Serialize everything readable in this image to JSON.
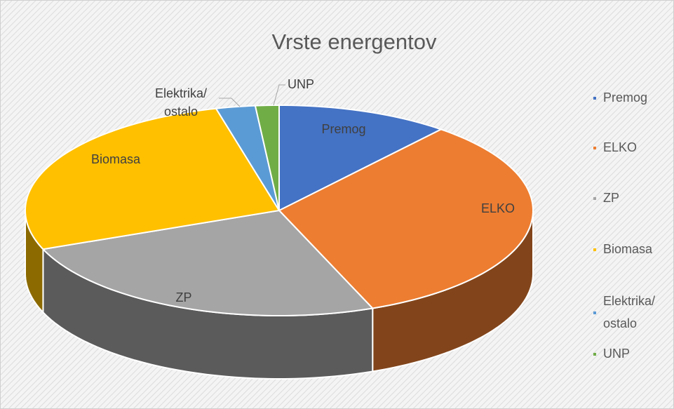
{
  "chart_data": {
    "type": "pie",
    "title": "Vrste energentov",
    "categories": [
      "Premog",
      "ELKO",
      "ZP",
      "Biomasa",
      "Elektrika/\nostalo",
      "UNP"
    ],
    "values": [
      11,
      33,
      25,
      27,
      2.5,
      1.5
    ],
    "colors": [
      "#4472c4",
      "#ed7d31",
      "#a5a5a5",
      "#ffc000",
      "#5b9bd5",
      "#70ad47"
    ],
    "legend": "right"
  }
}
